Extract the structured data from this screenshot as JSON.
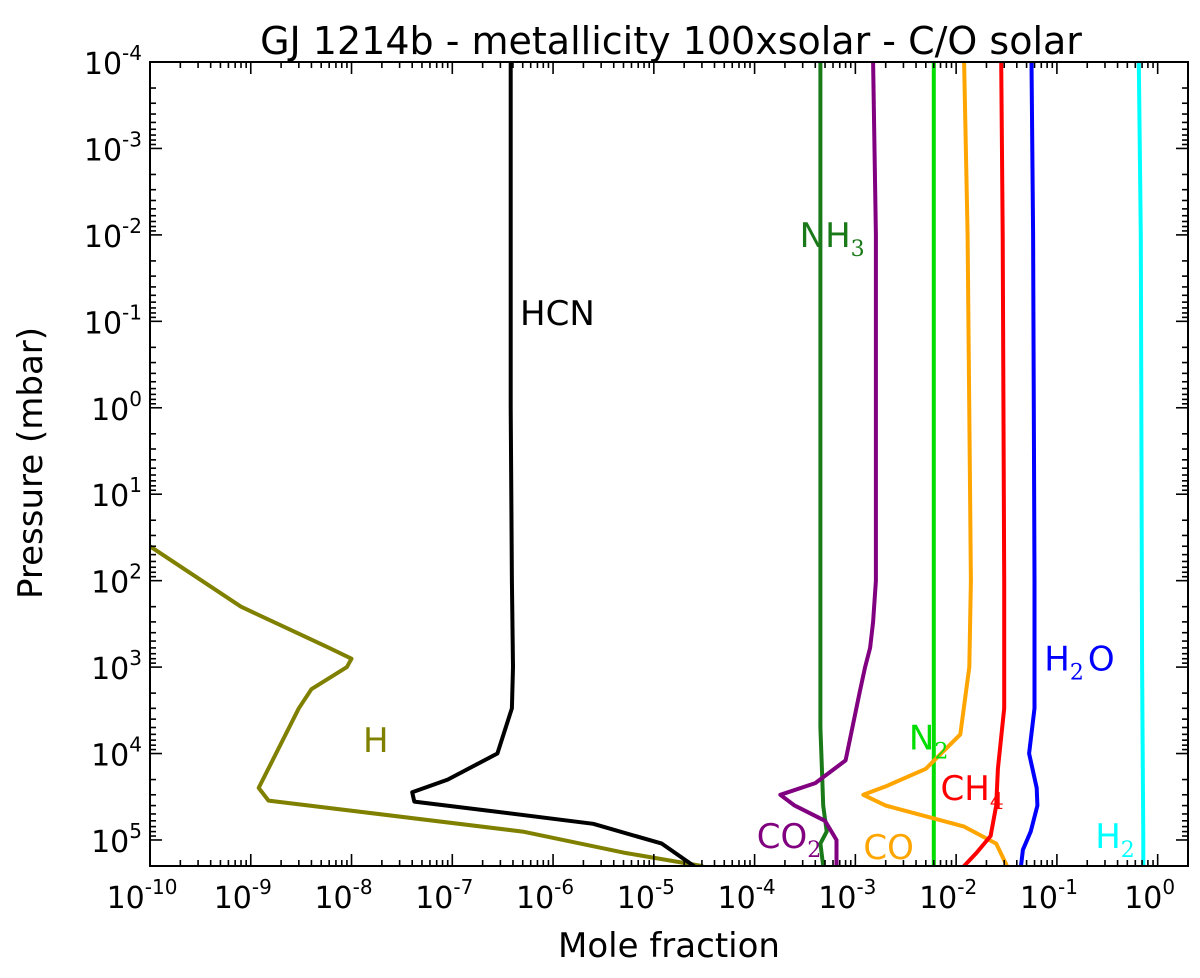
{
  "chart_data": {
    "type": "line",
    "title": "GJ 1214b - metallicity 100xsolar - C/O solar",
    "xlabel": "Mole fraction",
    "ylabel": "Pressure (mbar)",
    "xscale": "log",
    "yscale": "log",
    "y_inverted": true,
    "xlim": [
      1e-10,
      2
    ],
    "ylim": [
      0.0001,
      200000
    ],
    "grid": false,
    "legend": "none",
    "x_ticks": [
      {
        "base": "10",
        "exp": "-10",
        "value": 1e-10
      },
      {
        "base": "10",
        "exp": "-9",
        "value": 1e-09
      },
      {
        "base": "10",
        "exp": "-8",
        "value": 1e-08
      },
      {
        "base": "10",
        "exp": "-7",
        "value": 1e-07
      },
      {
        "base": "10",
        "exp": "-6",
        "value": 1e-06
      },
      {
        "base": "10",
        "exp": "-5",
        "value": 1e-05
      },
      {
        "base": "10",
        "exp": "-4",
        "value": 0.0001
      },
      {
        "base": "10",
        "exp": "-3",
        "value": 0.001
      },
      {
        "base": "10",
        "exp": "-2",
        "value": 0.01
      },
      {
        "base": "10",
        "exp": "-1",
        "value": 0.1
      },
      {
        "base": "10",
        "exp": "0",
        "value": 1
      }
    ],
    "y_ticks": [
      {
        "base": "10",
        "exp": "-4",
        "value": 0.0001
      },
      {
        "base": "10",
        "exp": "-3",
        "value": 0.001
      },
      {
        "base": "10",
        "exp": "-2",
        "value": 0.01
      },
      {
        "base": "10",
        "exp": "-1",
        "value": 0.1
      },
      {
        "base": "10",
        "exp": "0",
        "value": 1
      },
      {
        "base": "10",
        "exp": "1",
        "value": 10
      },
      {
        "base": "10",
        "exp": "2",
        "value": 100
      },
      {
        "base": "10",
        "exp": "3",
        "value": 1000
      },
      {
        "base": "10",
        "exp": "4",
        "value": 10000
      },
      {
        "base": "10",
        "exp": "5",
        "value": 100000
      }
    ],
    "series": [
      {
        "id": "H",
        "color": "#808000",
        "label": {
          "main": "H",
          "sub": "",
          "tail": "",
          "x": 1.3e-08,
          "p": 7000
        },
        "points": [
          [
            1e-10,
            40
          ],
          [
            8e-10,
            200
          ],
          [
            6e-09,
            600
          ],
          [
            1e-08,
            800
          ],
          [
            9e-09,
            1000
          ],
          [
            4e-09,
            1800
          ],
          [
            3e-09,
            3000
          ],
          [
            1.2e-09,
            25000
          ],
          [
            1.5e-09,
            35000
          ],
          [
            5e-07,
            80000
          ],
          [
            5e-06,
            140000
          ],
          [
            3e-05,
            200000
          ]
        ]
      },
      {
        "id": "HCN",
        "color": "#000000",
        "label": {
          "main": "HCN",
          "sub": "",
          "tail": "",
          "x": 4.7e-07,
          "p": 0.08
        },
        "points": [
          [
            3.8e-07,
            0.0001
          ],
          [
            3.8e-07,
            1
          ],
          [
            3.9e-07,
            100
          ],
          [
            4e-07,
            1000
          ],
          [
            3.9e-07,
            3000
          ],
          [
            2.8e-07,
            10000
          ],
          [
            9e-08,
            20000
          ],
          [
            4e-08,
            28000
          ],
          [
            4.2e-08,
            36000
          ],
          [
            2e-07,
            45000
          ],
          [
            2.5e-06,
            65000
          ],
          [
            1.2e-05,
            110000
          ],
          [
            2.5e-05,
            200000
          ]
        ]
      },
      {
        "id": "NH3",
        "color": "#1a7a1a",
        "label": {
          "main": "NH",
          "sub": "3",
          "tail": "",
          "x": 0.00028,
          "p": 0.01
        },
        "points": [
          [
            0.00045,
            0.0001
          ],
          [
            0.00045,
            5000
          ],
          [
            0.00047,
            20000
          ],
          [
            0.00048,
            40000
          ],
          [
            0.00052,
            80000
          ],
          [
            0.00045,
            110000
          ],
          [
            0.00048,
            200000
          ]
        ]
      },
      {
        "id": "CO2",
        "color": "#800080",
        "label": {
          "main": "CO",
          "sub": "2",
          "tail": "",
          "x": 0.000105,
          "p": 90000
        },
        "points": [
          [
            0.0015,
            0.0001
          ],
          [
            0.0016,
            0.01
          ],
          [
            0.0016,
            100
          ],
          [
            0.0015,
            300
          ],
          [
            0.0014,
            600
          ],
          [
            0.00125,
            1000
          ],
          [
            0.0011,
            2000
          ],
          [
            0.0008,
            12000
          ],
          [
            0.0004,
            22000
          ],
          [
            0.00018,
            30000
          ],
          [
            0.00025,
            40000
          ],
          [
            0.0005,
            60000
          ],
          [
            0.00065,
            100000
          ],
          [
            0.00065,
            200000
          ]
        ]
      },
      {
        "id": "N2",
        "color": "#00dd00",
        "label": {
          "main": "N",
          "sub": "2",
          "tail": "",
          "x": 0.0034,
          "p": 6500
        },
        "points": [
          [
            0.006,
            0.0001
          ],
          [
            0.006,
            200000
          ]
        ]
      },
      {
        "id": "CO",
        "color": "#ffa500",
        "label": {
          "main": "CO",
          "sub": "",
          "tail": "",
          "x": 0.0012,
          "p": 120000
        },
        "points": [
          [
            0.012,
            0.0001
          ],
          [
            0.013,
            0.01
          ],
          [
            0.014,
            100
          ],
          [
            0.0135,
            1000
          ],
          [
            0.011,
            6000
          ],
          [
            0.005,
            15000
          ],
          [
            0.002,
            24000
          ],
          [
            0.0012,
            30000
          ],
          [
            0.002,
            40000
          ],
          [
            0.012,
            70000
          ],
          [
            0.025,
            110000
          ],
          [
            0.032,
            200000
          ]
        ]
      },
      {
        "id": "CH4",
        "color": "#ff0000",
        "label": {
          "main": "CH",
          "sub": "4",
          "tail": "",
          "x": 0.007,
          "p": 25000
        },
        "points": [
          [
            0.028,
            0.0001
          ],
          [
            0.029,
            0.01
          ],
          [
            0.03,
            100
          ],
          [
            0.03,
            3000
          ],
          [
            0.026,
            15000
          ],
          [
            0.025,
            40000
          ],
          [
            0.022,
            90000
          ],
          [
            0.016,
            140000
          ],
          [
            0.012,
            200000
          ]
        ]
      },
      {
        "id": "H2O",
        "color": "#0000ff",
        "label": {
          "main": "H",
          "sub": "2",
          "tail": "O",
          "x": 0.075,
          "p": 800
        },
        "points": [
          [
            0.056,
            0.0001
          ],
          [
            0.058,
            0.01
          ],
          [
            0.06,
            100
          ],
          [
            0.06,
            3000
          ],
          [
            0.053,
            10000
          ],
          [
            0.063,
            25000
          ],
          [
            0.064,
            40000
          ],
          [
            0.055,
            80000
          ],
          [
            0.046,
            130000
          ],
          [
            0.044,
            200000
          ]
        ]
      },
      {
        "id": "H2",
        "color": "#00ffff",
        "label": {
          "main": "H",
          "sub": "2",
          "tail": "",
          "x": 0.24,
          "p": 90000
        },
        "points": [
          [
            0.65,
            0.0001
          ],
          [
            0.68,
            0.01
          ],
          [
            0.7,
            1000
          ],
          [
            0.72,
            100000
          ],
          [
            0.72,
            200000
          ]
        ]
      }
    ]
  }
}
